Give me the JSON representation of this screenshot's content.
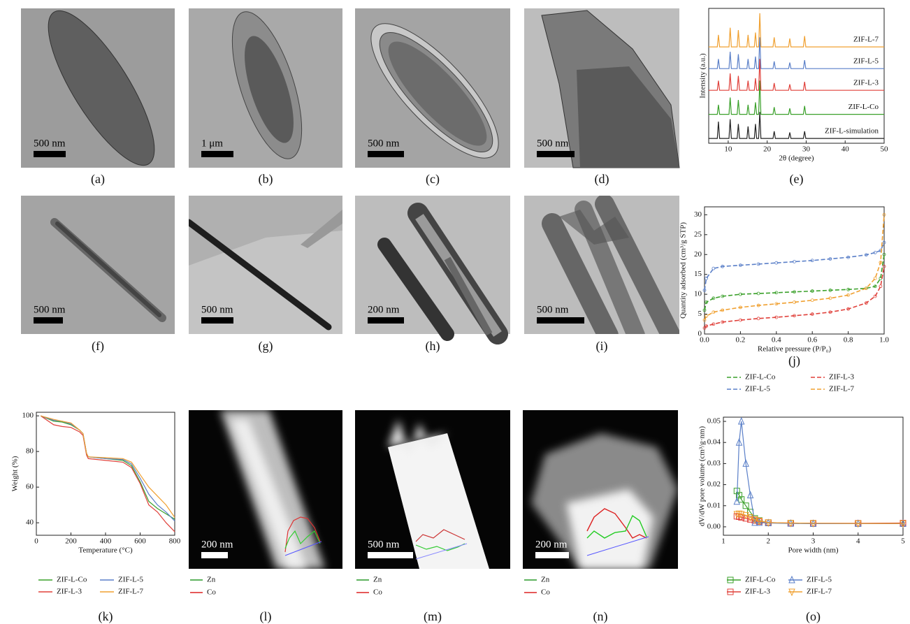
{
  "images": [
    {
      "panel": "(a)",
      "scale_bar": "500 nm"
    },
    {
      "panel": "(b)",
      "scale_bar": "1 μm"
    },
    {
      "panel": "(c)",
      "scale_bar": "500 nm"
    },
    {
      "panel": "(d)",
      "scale_bar": "500 nm"
    },
    {
      "panel": "(f)",
      "scale_bar": "500 nm"
    },
    {
      "panel": "(g)",
      "scale_bar": "500 nm"
    },
    {
      "panel": "(h)",
      "scale_bar": "200 nm"
    },
    {
      "panel": "(i)",
      "scale_bar": "500 nm"
    },
    {
      "panel": "(l)",
      "scale_bar": "200 nm",
      "legend": [
        "Zn",
        "Co"
      ]
    },
    {
      "panel": "(m)",
      "scale_bar": "500 nm",
      "legend": [
        "Zn",
        "Co"
      ]
    },
    {
      "panel": "(n)",
      "scale_bar": "200 nm",
      "legend": [
        "Zn",
        "Co"
      ]
    }
  ],
  "chart_data": [
    {
      "type": "line",
      "panel": "(e)",
      "xlabel": "2θ (degree)",
      "ylabel": "Intensity (a.u.)",
      "xlim": [
        5,
        50
      ],
      "xticks": [
        10,
        20,
        30,
        40,
        50
      ],
      "ylim": [
        0,
        5.6
      ],
      "x": [
        5,
        7.2,
        7.5,
        7.8,
        10.2,
        10.5,
        10.8,
        12.3,
        12.6,
        12.9,
        14.8,
        15.1,
        15.4,
        16.7,
        17,
        17.3,
        17.8,
        18.1,
        18.4,
        21.5,
        21.8,
        22.1,
        25.5,
        25.8,
        26.1,
        29.3,
        29.6,
        29.9,
        50
      ],
      "series": [
        {
          "name": "ZIF-L-7",
          "color": "#f0a030",
          "values": [
            4.0,
            4.0,
            4.5,
            4.0,
            4.0,
            4.8,
            4.0,
            4.0,
            4.7,
            4.0,
            4.0,
            4.5,
            4.0,
            4.0,
            4.6,
            4.0,
            4.0,
            5.4,
            4.0,
            4.0,
            4.4,
            4.0,
            4.0,
            4.35,
            4.0,
            4.0,
            4.45,
            4.0,
            4.0
          ]
        },
        {
          "name": "ZIF-L-5",
          "color": "#5a7fc8",
          "values": [
            3.1,
            3.1,
            3.5,
            3.1,
            3.1,
            3.8,
            3.1,
            3.1,
            3.7,
            3.1,
            3.1,
            3.5,
            3.1,
            3.1,
            3.6,
            3.1,
            3.1,
            4.4,
            3.1,
            3.1,
            3.4,
            3.1,
            3.1,
            3.35,
            3.1,
            3.1,
            3.45,
            3.1,
            3.1
          ]
        },
        {
          "name": "ZIF-L-3",
          "color": "#e0403a",
          "values": [
            2.2,
            2.2,
            2.6,
            2.2,
            2.2,
            2.9,
            2.2,
            2.2,
            2.8,
            2.2,
            2.2,
            2.6,
            2.2,
            2.2,
            2.7,
            2.2,
            2.2,
            3.5,
            2.2,
            2.2,
            2.5,
            2.2,
            2.2,
            2.45,
            2.2,
            2.2,
            2.55,
            2.2,
            2.2
          ]
        },
        {
          "name": "ZIF-L-Co",
          "color": "#3aa02a",
          "values": [
            1.2,
            1.2,
            1.6,
            1.2,
            1.2,
            1.9,
            1.2,
            1.2,
            1.8,
            1.2,
            1.2,
            1.6,
            1.2,
            1.2,
            1.7,
            1.2,
            1.2,
            2.6,
            1.2,
            1.2,
            1.5,
            1.2,
            1.2,
            1.45,
            1.2,
            1.2,
            1.55,
            1.2,
            1.2
          ]
        },
        {
          "name": "ZIF-L-simulation",
          "color": "#222222",
          "values": [
            0.2,
            0.2,
            0.9,
            0.2,
            0.2,
            1.0,
            0.2,
            0.2,
            0.8,
            0.2,
            0.2,
            0.7,
            0.2,
            0.2,
            0.8,
            0.2,
            0.2,
            1.3,
            0.2,
            0.2,
            0.5,
            0.2,
            0.2,
            0.45,
            0.2,
            0.2,
            0.5,
            0.2,
            0.2
          ]
        }
      ]
    },
    {
      "type": "line",
      "panel": "(j)",
      "xlabel": "Relative pressure (P/P₀)",
      "ylabel": "Quantity adsorbed (cm³/g STP)",
      "line_style": "dashed",
      "marker": "circle",
      "xlim": [
        0,
        1
      ],
      "xticks": [
        {
          "value": 0,
          "label": "0.0"
        },
        0.2,
        0.4,
        0.6,
        0.8,
        {
          "value": 1,
          "label": "1.0"
        }
      ],
      "ylim": [
        0,
        32
      ],
      "yticks": [
        0,
        5,
        10,
        15,
        20,
        25,
        30
      ],
      "x": [
        0,
        0.01,
        0.05,
        0.1,
        0.2,
        0.3,
        0.4,
        0.5,
        0.6,
        0.7,
        0.8,
        0.9,
        0.95,
        0.98,
        1.0
      ],
      "series": [
        {
          "name": "ZIF-L-Co",
          "color": "#3aa02a",
          "values": [
            6,
            8,
            9,
            9.5,
            10,
            10.2,
            10.4,
            10.6,
            10.8,
            11,
            11.2,
            11.5,
            12,
            14,
            20
          ]
        },
        {
          "name": "ZIF-L-5",
          "color": "#5a7fc8",
          "values": [
            11,
            14,
            16.5,
            17,
            17.3,
            17.6,
            17.9,
            18.2,
            18.5,
            18.9,
            19.3,
            19.9,
            20.5,
            21,
            23
          ]
        },
        {
          "name": "ZIF-L-3",
          "color": "#e0403a",
          "values": [
            1.5,
            2,
            2.5,
            3,
            3.5,
            3.9,
            4.2,
            4.6,
            5,
            5.5,
            6.3,
            7.8,
            9.5,
            12,
            17
          ]
        },
        {
          "name": "ZIF-L-7",
          "color": "#f0a030",
          "values": [
            3.5,
            4.5,
            5.5,
            6,
            6.7,
            7.2,
            7.6,
            8,
            8.5,
            9,
            9.8,
            11.5,
            14,
            18,
            30
          ]
        }
      ]
    },
    {
      "type": "line",
      "panel": "(k)",
      "xlabel": "Temperature (°C)",
      "ylabel": "Weight (%)",
      "xlim": [
        0,
        800
      ],
      "xticks": [
        0,
        200,
        400,
        600,
        800
      ],
      "ylim": [
        33,
        102
      ],
      "yticks": [
        40,
        60,
        80,
        100
      ],
      "x": [
        25,
        100,
        150,
        200,
        250,
        270,
        290,
        300,
        400,
        500,
        550,
        600,
        650,
        700,
        750,
        800
      ],
      "series": [
        {
          "name": "ZIF-L-Co",
          "color": "#3aa02a",
          "values": [
            100,
            97,
            96.5,
            95,
            92,
            90,
            79,
            77,
            76,
            75,
            72,
            63,
            52,
            48,
            45,
            42
          ]
        },
        {
          "name": "ZIF-L-3",
          "color": "#e0403a",
          "values": [
            100,
            95,
            94,
            93.5,
            91,
            89,
            78,
            76,
            75,
            74,
            71,
            62,
            50,
            46,
            40,
            35
          ]
        },
        {
          "name": "ZIF-L-5",
          "color": "#5a7fc8",
          "values": [
            100,
            97.5,
            97,
            95.5,
            92,
            90,
            79,
            77,
            76,
            75.5,
            73,
            65,
            56,
            50,
            46,
            41
          ]
        },
        {
          "name": "ZIF-L-7",
          "color": "#f0a030",
          "values": [
            100,
            98,
            97,
            96,
            92,
            90,
            79,
            77,
            76.5,
            76,
            74,
            67,
            60,
            55,
            50,
            43
          ]
        }
      ]
    },
    {
      "type": "line",
      "panel": "(o)",
      "xlabel": "Pore width (nm)",
      "ylabel": "dV/dW pore volume (cm³/g·nm)",
      "xlim": [
        1,
        5
      ],
      "xticks": [
        1,
        2,
        3,
        4,
        5
      ],
      "ylim": [
        -0.004,
        0.052
      ],
      "yticks": [
        {
          "value": 0,
          "label": "0.00"
        },
        0.01,
        0.02,
        0.03,
        0.04,
        0.05
      ],
      "x": [
        1.3,
        1.35,
        1.4,
        1.5,
        1.6,
        1.7,
        1.8,
        2,
        2.5,
        3,
        4,
        5
      ],
      "series": [
        {
          "name": "ZIF-L-Co",
          "color": "#3aa02a",
          "marker": "square",
          "values": [
            0.017,
            0.015,
            0.013,
            0.01,
            0.007,
            0.004,
            0.003,
            0.002,
            0.0017,
            0.0016,
            0.0016,
            0.0016
          ]
        },
        {
          "name": "ZIF-L-3",
          "color": "#e0403a",
          "marker": "square",
          "values": [
            0.005,
            0.0048,
            0.0045,
            0.004,
            0.0035,
            0.003,
            0.0025,
            0.002,
            0.0018,
            0.0017,
            0.0017,
            0.0018
          ]
        },
        {
          "name": "ZIF-L-5",
          "color": "#5a7fc8",
          "marker": "triangle-up",
          "values": [
            0.012,
            0.04,
            0.05,
            0.03,
            0.015,
            0.002,
            0.002,
            0.0018,
            0.0016,
            0.0015,
            0.0015,
            0.0015
          ]
        },
        {
          "name": "ZIF-L-7",
          "color": "#f0a030",
          "marker": "triangle-down",
          "values": [
            0.006,
            0.0062,
            0.006,
            0.0055,
            0.0045,
            0.0035,
            0.0028,
            0.002,
            0.0018,
            0.0017,
            0.0016,
            0.0016
          ]
        }
      ]
    }
  ]
}
